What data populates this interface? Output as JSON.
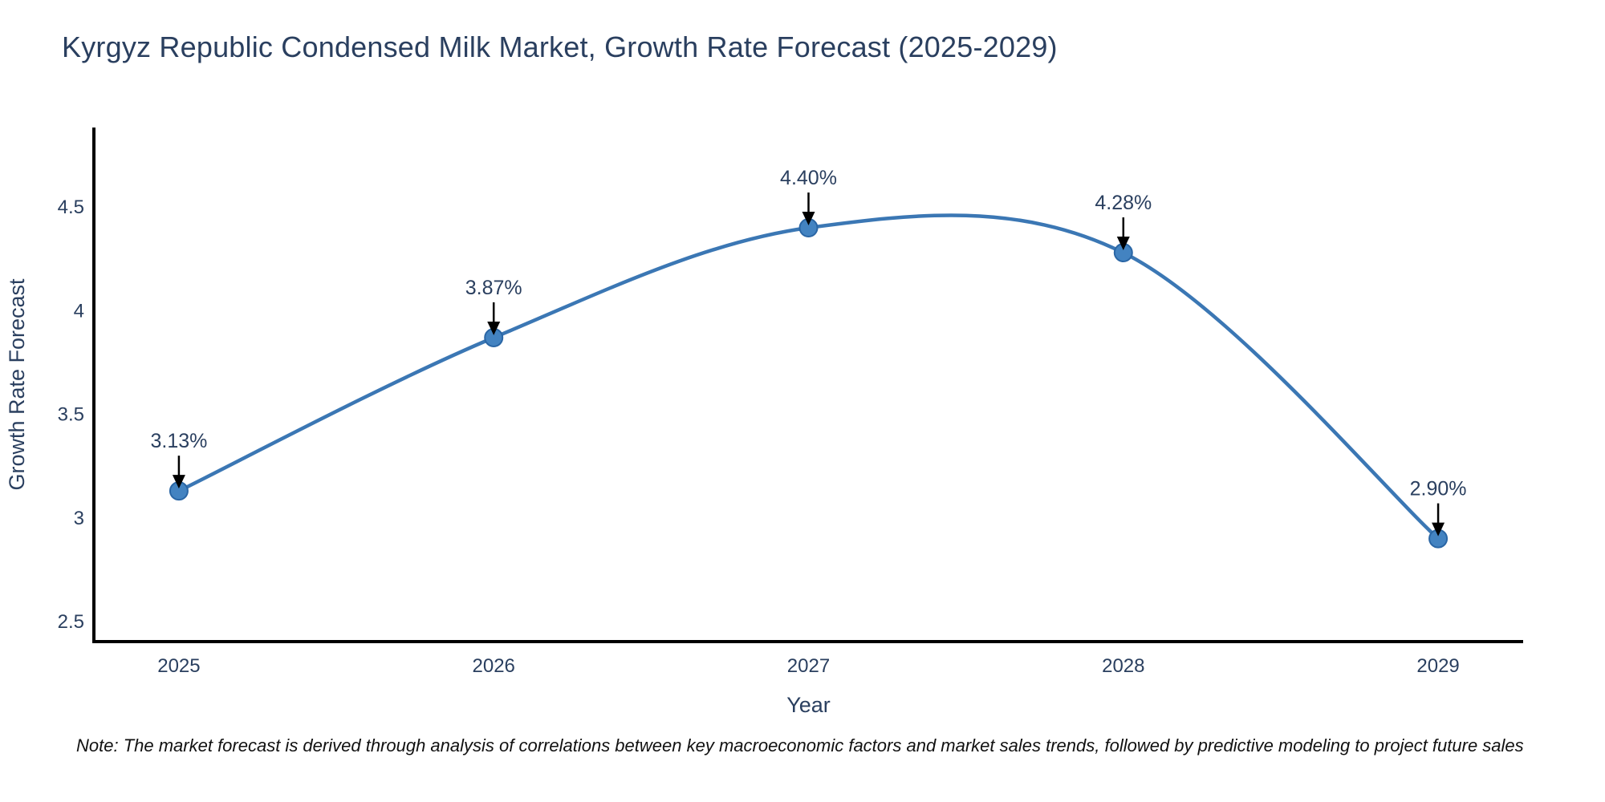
{
  "chart_data": {
    "type": "line",
    "title": "Kyrgyz Republic Condensed Milk Market, Growth Rate Forecast (2025-2029)",
    "xlabel": "Year",
    "ylabel": "Growth Rate Forecast",
    "x": [
      2025,
      2026,
      2027,
      2028,
      2029
    ],
    "values": [
      3.13,
      3.87,
      4.4,
      4.28,
      2.9
    ],
    "point_labels": [
      "3.13%",
      "3.87%",
      "4.40%",
      "4.28%",
      "2.90%"
    ],
    "xtick_labels": [
      "2025",
      "2026",
      "2027",
      "2028",
      "2029"
    ],
    "yticks": [
      2.5,
      3.0,
      3.5,
      4.0,
      4.5
    ],
    "ytick_labels": [
      "2.5",
      "3",
      "3.5",
      "4",
      "4.5"
    ],
    "xlim": [
      2024.73,
      2029.27
    ],
    "ylim": [
      2.403,
      4.884
    ],
    "grid": false,
    "legend_position": "none",
    "line_shape": "spline",
    "colors": {
      "line": "#3b77b4",
      "marker_fill": "#4383c1",
      "marker_edge": "#2a66a5",
      "axis": "#000000",
      "text": "#2a3f5f",
      "annotation_arrow": "#000000"
    },
    "note": "Note: The market forecast is derived through analysis of correlations between key macroeconomic factors and market sales trends, followed by predictive modeling to project future sales"
  }
}
